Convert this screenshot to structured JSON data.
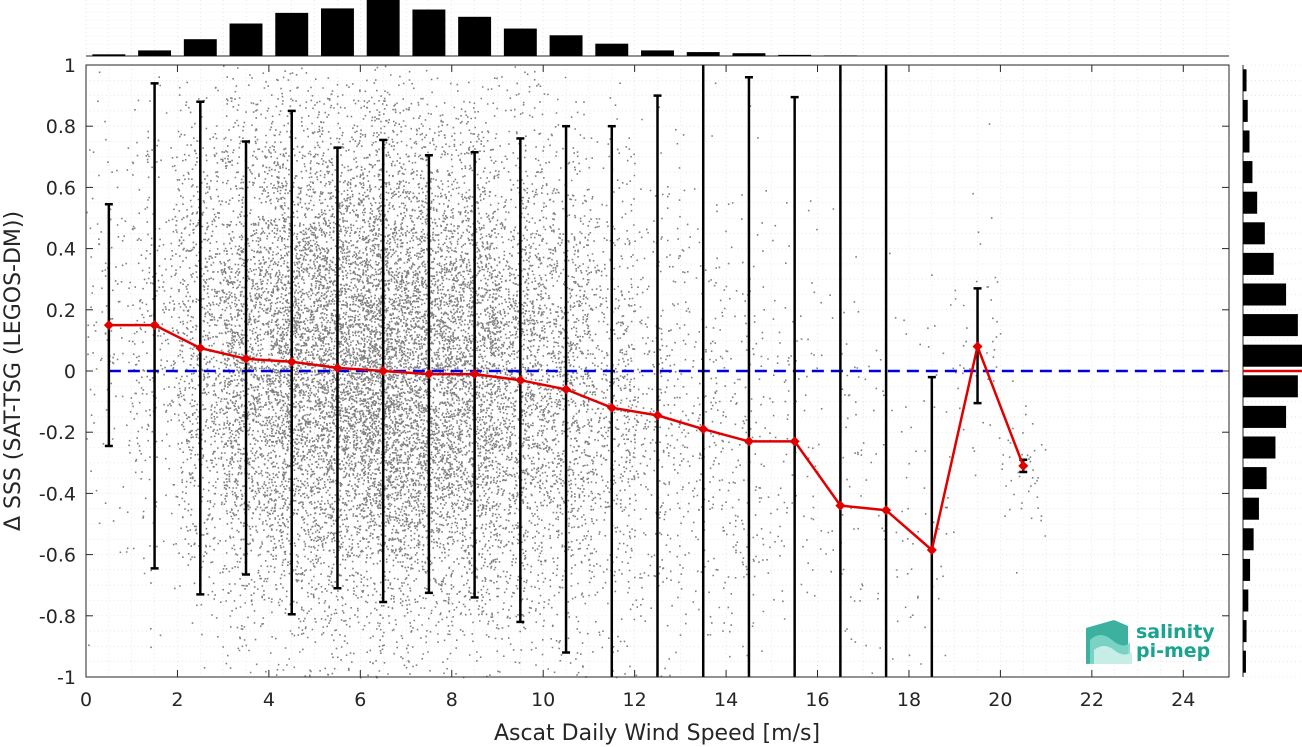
{
  "chart_data": {
    "type": "scatter",
    "xlabel": "Ascat Daily Wind Speed [m/s]",
    "ylabel": "Δ SSS (SAT-TSG (LEGOS-DM))",
    "xlim": [
      0,
      25
    ],
    "ylim": [
      -1,
      1
    ],
    "xticks": [
      0,
      2,
      4,
      6,
      8,
      10,
      12,
      14,
      16,
      18,
      20,
      22,
      24
    ],
    "yticks": [
      -1,
      -0.8,
      -0.6,
      -0.4,
      -0.2,
      0,
      0.2,
      0.4,
      0.6,
      0.8,
      1
    ],
    "xtick_labels": [
      "0",
      "2",
      "4",
      "6",
      "8",
      "10",
      "12",
      "14",
      "16",
      "18",
      "20",
      "22",
      "24"
    ],
    "ytick_labels": [
      "-1",
      "-0.8",
      "-0.6",
      "-0.4",
      "-0.2",
      "0",
      "0.2",
      "0.4",
      "0.6",
      "0.8",
      "1"
    ],
    "grid": true,
    "reference_line": {
      "y": 0,
      "style": "dashed",
      "color": "#0000dd"
    },
    "scatter_color": "#808080",
    "series": [
      {
        "color": "#e00000",
        "x": [
          0.5,
          1.5,
          2.5,
          3.5,
          4.5,
          5.5,
          6.5,
          7.5,
          8.5,
          9.5,
          10.5,
          11.5,
          12.5,
          13.5,
          14.5,
          15.5,
          16.5,
          17.5,
          18.5,
          19.5,
          20.5
        ],
        "mean": [
          0.15,
          0.15,
          0.075,
          0.04,
          0.03,
          0.01,
          0,
          -0.01,
          -0.01,
          -0.03,
          -0.06,
          -0.12,
          -0.145,
          -0.19,
          -0.23,
          -0.23,
          -0.44,
          -0.455,
          -0.585,
          0.08,
          -0.31
        ],
        "err_low": [
          -0.245,
          -0.645,
          -0.73,
          -0.665,
          -0.795,
          -0.71,
          -0.755,
          -0.725,
          -0.74,
          -0.82,
          -0.92,
          -1,
          -1,
          -1,
          -1,
          -1,
          -1,
          -1,
          -1,
          -0.105,
          -0.33
        ],
        "err_high": [
          0.545,
          0.94,
          0.88,
          0.75,
          0.85,
          0.73,
          0.755,
          0.705,
          0.715,
          0.76,
          0.8,
          0.8,
          0.9,
          1,
          0.96,
          0.895,
          1,
          1,
          -0.02,
          0.27,
          -0.29
        ]
      }
    ],
    "top_histogram": {
      "bin_centers": [
        0.5,
        1.5,
        2.5,
        3.5,
        4.5,
        5.5,
        6.5,
        7.5,
        8.5,
        9.5,
        10.5,
        11.5,
        12.5,
        13.5,
        14.5,
        15.5,
        16.5,
        17.5,
        18.5,
        19.5,
        20.5
      ],
      "relative_counts": [
        0.03,
        0.1,
        0.3,
        0.58,
        0.77,
        0.85,
        1,
        0.83,
        0.7,
        0.49,
        0.37,
        0.22,
        0.1,
        0.07,
        0.05,
        0.02,
        0.01,
        0.003,
        0.002,
        0.001,
        0.001
      ]
    },
    "right_histogram": {
      "bin_centers": [
        -0.95,
        -0.85,
        -0.75,
        -0.65,
        -0.55,
        -0.45,
        -0.35,
        -0.25,
        -0.15,
        -0.05,
        0.05,
        0.15,
        0.25,
        0.35,
        0.45,
        0.55,
        0.65,
        0.75,
        0.85,
        0.95
      ],
      "relative_counts": [
        0.05,
        0.06,
        0.09,
        0.12,
        0.18,
        0.27,
        0.4,
        0.55,
        0.73,
        0.93,
        1,
        0.93,
        0.73,
        0.52,
        0.37,
        0.24,
        0.16,
        0.11,
        0.08,
        0.06
      ],
      "mean_marker_y": 0,
      "mean_marker_color": "#e00000"
    }
  },
  "logo": {
    "line1": "salinity",
    "line2": "pi-mep",
    "color": "#1aa38f"
  }
}
